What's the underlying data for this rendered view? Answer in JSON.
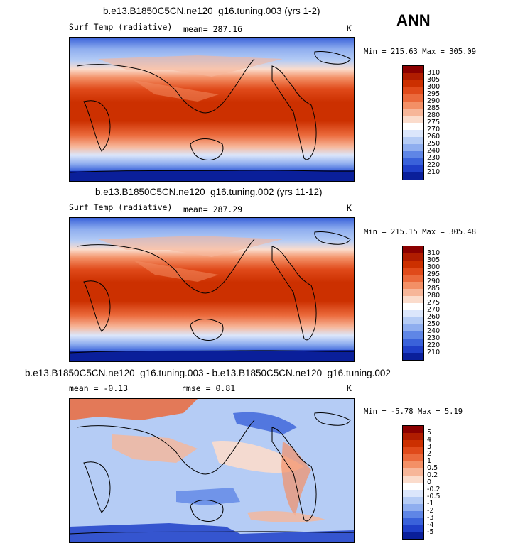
{
  "header": {
    "season": "ANN"
  },
  "chart_data": [
    {
      "type": "heatmap",
      "title": "b.e13.B1850C5CN.ne120_g16.tuning.003 (yrs 1-2)",
      "variable": "Surf Temp (radiative)",
      "mean_label": "mean=",
      "mean": "287.16",
      "units": "K",
      "min_label": "Min =",
      "min": "215.63",
      "max_label": "Max =",
      "max": "305.09",
      "levels": [
        "310",
        "305",
        "300",
        "295",
        "290",
        "285",
        "280",
        "275",
        "270",
        "260",
        "250",
        "240",
        "230",
        "220",
        "210"
      ],
      "colors": [
        "#8b0000",
        "#b01c00",
        "#cc3000",
        "#e04a1a",
        "#eb6a3c",
        "#f39066",
        "#f7b699",
        "#fbdccc",
        "#ffffff",
        "#dbe6fb",
        "#b5ccf5",
        "#8faeef",
        "#5f86e6",
        "#3a62da",
        "#1f3fc8",
        "#0a1f9a"
      ]
    },
    {
      "type": "heatmap",
      "title": "b.e13.B1850C5CN.ne120_g16.tuning.002 (yrs 11-12)",
      "variable": "Surf Temp (radiative)",
      "mean_label": "mean=",
      "mean": "287.29",
      "units": "K",
      "min_label": "Min =",
      "min": "215.15",
      "max_label": "Max =",
      "max": "305.48",
      "levels": [
        "310",
        "305",
        "300",
        "295",
        "290",
        "285",
        "280",
        "275",
        "270",
        "260",
        "250",
        "240",
        "230",
        "220",
        "210"
      ],
      "colors": [
        "#8b0000",
        "#b01c00",
        "#cc3000",
        "#e04a1a",
        "#eb6a3c",
        "#f39066",
        "#f7b699",
        "#fbdccc",
        "#ffffff",
        "#dbe6fb",
        "#b5ccf5",
        "#8faeef",
        "#5f86e6",
        "#3a62da",
        "#1f3fc8",
        "#0a1f9a"
      ]
    },
    {
      "type": "heatmap",
      "title": "b.e13.B1850C5CN.ne120_g16.tuning.003 - b.e13.B1850C5CN.ne120_g16.tuning.002",
      "mean_label": "mean =",
      "mean": "-0.13",
      "rmse_label": "rmse =",
      "rmse": "0.81",
      "units": "K",
      "min_label": "Min =",
      "min": "-5.78",
      "max_label": "Max =",
      "max": "5.19",
      "levels": [
        "5",
        "4",
        "3",
        "2",
        "1",
        "0.5",
        "0.2",
        "0",
        "-0.2",
        "-0.5",
        "-1",
        "-2",
        "-3",
        "-4",
        "-5"
      ],
      "colors": [
        "#8b0000",
        "#b01c00",
        "#cc3000",
        "#e04a1a",
        "#eb6a3c",
        "#f39066",
        "#f7b699",
        "#fbdccc",
        "#ffffff",
        "#dbe6fb",
        "#b5ccf5",
        "#8faeef",
        "#5f86e6",
        "#3a62da",
        "#1f3fc8",
        "#0a1f9a"
      ]
    }
  ]
}
